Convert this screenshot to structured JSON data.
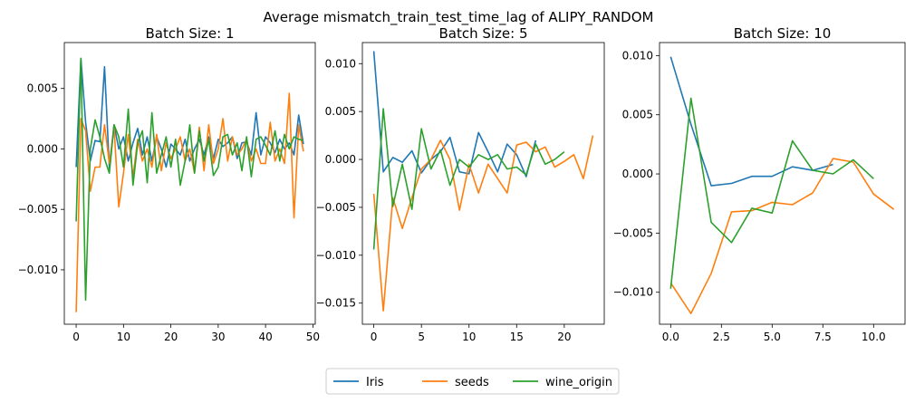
{
  "figure_title": "Average mismatch_train_test_time_lag of ALIPY_RANDOM",
  "colors": {
    "Iris": "#1f77b4",
    "seeds": "#ff7f0e",
    "wine_origin": "#2ca02c"
  },
  "legend": {
    "placement": "bottom-center",
    "entries": [
      "Iris",
      "seeds",
      "wine_origin"
    ]
  },
  "chart_data": [
    {
      "type": "line",
      "title": "Batch Size: 1",
      "xlim": [
        -2.5,
        50.5
      ],
      "ylim": [
        -0.0145,
        0.0088
      ],
      "xticks": [
        0,
        10,
        20,
        30,
        40,
        50
      ],
      "xtick_labels": [
        "0",
        "10",
        "20",
        "30",
        "40",
        "50"
      ],
      "yticks": [
        -0.01,
        -0.005,
        0.0,
        0.005
      ],
      "ytick_labels": [
        "−0.010",
        "−0.005",
        "0.000",
        "0.005"
      ],
      "grid": false,
      "series": [
        {
          "name": "Iris",
          "x": [
            0,
            1,
            2,
            3,
            4,
            5,
            6,
            7,
            8,
            9,
            10,
            11,
            12,
            13,
            14,
            15,
            16,
            17,
            18,
            19,
            20,
            21,
            22,
            23,
            24,
            25,
            26,
            27,
            28,
            29,
            30,
            31,
            32,
            33,
            34,
            35,
            36,
            37,
            38,
            39,
            40,
            41,
            42,
            43,
            44,
            45,
            46,
            47,
            48
          ],
          "y": [
            -0.0015,
            0.0075,
            0.0022,
            -0.001,
            0.0007,
            0.0006,
            0.0068,
            -0.0016,
            0.002,
            0.0,
            0.001,
            -0.001,
            0.0005,
            0.0017,
            -0.0005,
            0.001,
            -0.001,
            0.001,
            0.0,
            -0.0015,
            0.0004,
            0.0,
            -0.0005,
            0.0008,
            -0.001,
            0.0,
            0.0008,
            -0.0005,
            0.001,
            -0.0008,
            0.0008,
            0.0002,
            0.0005,
            0.001,
            -0.0008,
            0.0005,
            0.0006,
            -0.0005,
            0.003,
            -0.0005,
            0.001,
            0.0005,
            -0.0003,
            0.0008,
            0.0,
            0.0005,
            -0.0005,
            0.0028,
            0.0004
          ]
        },
        {
          "name": "seeds",
          "x": [
            0,
            1,
            2,
            3,
            4,
            5,
            6,
            7,
            8,
            9,
            10,
            11,
            12,
            13,
            14,
            15,
            16,
            17,
            18,
            19,
            20,
            21,
            22,
            23,
            24,
            25,
            26,
            27,
            28,
            29,
            30,
            31,
            32,
            33,
            34,
            35,
            36,
            37,
            38,
            39,
            40,
            41,
            42,
            43,
            44,
            45,
            46,
            47,
            48
          ],
          "y": [
            -0.0135,
            0.0025,
            0.0015,
            -0.0035,
            -0.0015,
            -0.0015,
            0.002,
            -0.0012,
            0.0018,
            -0.0048,
            -0.002,
            0.0012,
            -0.0023,
            0.0008,
            -0.001,
            0.0,
            -0.0015,
            0.0012,
            -0.0018,
            0.0005,
            -0.0008,
            0.0,
            0.001,
            -0.001,
            0.0,
            -0.002,
            0.0018,
            -0.0018,
            0.002,
            -0.0012,
            0.0,
            0.0025,
            -0.001,
            0.001,
            -0.0005,
            0.0,
            0.0008,
            -0.001,
            0.0,
            -0.0012,
            -0.0012,
            0.0022,
            -0.001,
            0.0,
            -0.0012,
            0.0046,
            -0.0057,
            0.002,
            -0.0002
          ]
        },
        {
          "name": "wine_origin",
          "x": [
            0,
            1,
            2,
            3,
            4,
            5,
            6,
            7,
            8,
            9,
            10,
            11,
            12,
            13,
            14,
            15,
            16,
            17,
            18,
            19,
            20,
            21,
            22,
            23,
            24,
            25,
            26,
            27,
            28,
            29,
            30,
            31,
            32,
            33,
            34,
            35,
            36,
            37,
            38,
            39,
            40,
            41,
            42,
            43,
            44,
            45,
            46,
            47,
            48
          ],
          "y": [
            -0.006,
            0.0075,
            -0.0125,
            0.0,
            0.0024,
            0.001,
            -0.0008,
            -0.002,
            0.002,
            0.001,
            -0.0015,
            0.0033,
            -0.003,
            0.0005,
            0.0015,
            -0.0028,
            0.003,
            -0.002,
            -0.0005,
            0.001,
            -0.0015,
            0.0008,
            -0.003,
            -0.001,
            0.002,
            -0.002,
            0.0015,
            -0.001,
            0.0008,
            -0.0022,
            -0.0015,
            0.001,
            0.0012,
            -0.0005,
            0.0005,
            -0.0018,
            0.001,
            -0.0023,
            0.0008,
            0.001,
            0.0003,
            -0.0005,
            0.0015,
            -0.001,
            0.0012,
            0.0,
            0.001,
            0.0008,
            0.0007
          ]
        }
      ]
    },
    {
      "type": "line",
      "title": "Batch Size: 5",
      "xlim": [
        -1.2,
        24.2
      ],
      "ylim": [
        -0.0172,
        0.0122
      ],
      "xticks": [
        0,
        5,
        10,
        15,
        20
      ],
      "xtick_labels": [
        "0",
        "5",
        "10",
        "15",
        "20"
      ],
      "yticks": [
        -0.015,
        -0.01,
        -0.005,
        0.0,
        0.005,
        0.01
      ],
      "ytick_labels": [
        "−0.015",
        "−0.010",
        "−0.005",
        "0.000",
        "0.005",
        "0.010"
      ],
      "grid": false,
      "series": [
        {
          "name": "Iris",
          "x": [
            0,
            1,
            2,
            3,
            4,
            5,
            6,
            7,
            8,
            9,
            10,
            11,
            12,
            13,
            14,
            15,
            16,
            17
          ],
          "y": [
            0.0113,
            -0.0013,
            0.0002,
            -0.0003,
            0.0009,
            -0.0014,
            0.0,
            0.0008,
            0.0023,
            -0.0013,
            -0.0015,
            0.0028,
            0.0008,
            -0.0013,
            0.0016,
            0.0005,
            -0.0018,
            0.002
          ]
        },
        {
          "name": "seeds",
          "x": [
            0,
            1,
            2,
            3,
            4,
            5,
            6,
            7,
            8,
            9,
            10,
            11,
            12,
            13,
            14,
            15,
            16,
            17,
            18,
            19,
            20,
            21,
            22,
            23
          ],
          "y": [
            -0.0036,
            -0.0158,
            -0.004,
            -0.0072,
            -0.004,
            -0.001,
            0.0,
            0.002,
            0.0,
            -0.0053,
            -0.0005,
            -0.0035,
            -0.0005,
            -0.002,
            -0.0035,
            0.0015,
            0.0018,
            0.0008,
            0.0013,
            -0.0008,
            -0.0002,
            0.0005,
            -0.002,
            0.0025
          ]
        },
        {
          "name": "wine_origin",
          "x": [
            0,
            1,
            2,
            3,
            4,
            5,
            6,
            7,
            8,
            9,
            10,
            11,
            12,
            13,
            14,
            15,
            16,
            17,
            18,
            19,
            20
          ],
          "y": [
            -0.0094,
            0.0053,
            -0.0049,
            -0.0005,
            -0.0052,
            0.0032,
            -0.001,
            0.001,
            -0.0027,
            0.0,
            -0.0008,
            0.0005,
            0.0,
            0.0005,
            -0.001,
            -0.0008,
            -0.0016,
            0.0016,
            -0.0005,
            0.0,
            0.0008
          ]
        }
      ]
    },
    {
      "type": "line",
      "title": "Batch Size: 10",
      "xlim": [
        -0.55,
        11.55
      ],
      "ylim": [
        -0.0127,
        0.0111
      ],
      "xticks": [
        0,
        2.5,
        5,
        7.5,
        10
      ],
      "xtick_labels": [
        "0.0",
        "2.5",
        "5.0",
        "7.5",
        "10.0"
      ],
      "yticks": [
        -0.01,
        -0.005,
        0.0,
        0.005,
        0.01
      ],
      "ytick_labels": [
        "−0.010",
        "−0.005",
        "0.000",
        "0.005",
        "0.010"
      ],
      "grid": false,
      "series": [
        {
          "name": "Iris",
          "x": [
            0,
            1,
            2,
            3,
            4,
            5,
            6,
            7,
            8
          ],
          "y": [
            0.0099,
            0.0042,
            -0.001,
            -0.0008,
            -0.0002,
            -0.0002,
            0.0006,
            0.0003,
            0.0008
          ]
        },
        {
          "name": "seeds",
          "x": [
            0,
            1,
            2,
            3,
            4,
            5,
            6,
            7,
            8,
            9,
            10,
            11
          ],
          "y": [
            -0.0092,
            -0.0118,
            -0.0084,
            -0.0032,
            -0.0031,
            -0.0024,
            -0.0026,
            -0.0016,
            0.0013,
            0.001,
            -0.0017,
            -0.003
          ]
        },
        {
          "name": "wine_origin",
          "x": [
            0,
            1,
            2,
            3,
            4,
            5,
            6,
            7,
            8,
            9,
            10
          ],
          "y": [
            -0.0097,
            0.0064,
            -0.0041,
            -0.0058,
            -0.0029,
            -0.0033,
            0.0028,
            0.0003,
            0.0,
            0.0012,
            -0.0004
          ]
        }
      ]
    }
  ]
}
